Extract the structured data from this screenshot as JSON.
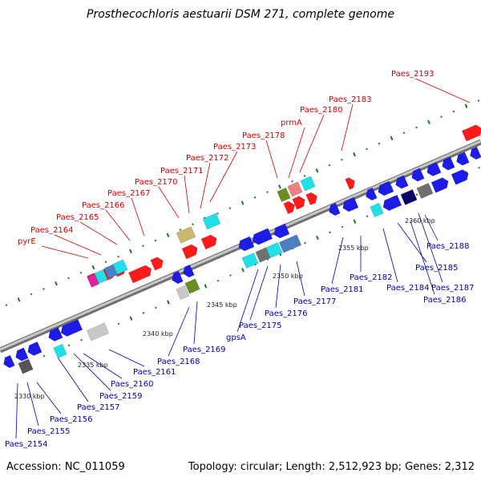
{
  "title": "Prosthecochloris aestuarii DSM 271, complete genome",
  "accession": "Accession: NC_011059",
  "topology": "Topology: circular; Length: 2,512,923 bp; Genes: 2,312",
  "colors": {
    "top_label": "#cc0000",
    "bottom_label": "#0000aa",
    "backbone": "#909090",
    "tick": "#1a7a1a"
  },
  "ticks": [
    {
      "text": "2330 kbp"
    },
    {
      "text": "2335 kbp"
    },
    {
      "text": "2340 kbp"
    },
    {
      "text": "2345 kbp"
    },
    {
      "text": "2350 kbp"
    },
    {
      "text": "2355 kbp"
    },
    {
      "text": "2360 kbp"
    }
  ],
  "top_labels": [
    {
      "text": "pyrE"
    },
    {
      "text": "Paes_2164"
    },
    {
      "text": "Paes_2165"
    },
    {
      "text": "Paes_2166"
    },
    {
      "text": "Paes_2167"
    },
    {
      "text": "Paes_2170"
    },
    {
      "text": "Paes_2171"
    },
    {
      "text": "Paes_2172"
    },
    {
      "text": "Paes_2173"
    },
    {
      "text": "Paes_2178"
    },
    {
      "text": "prmA"
    },
    {
      "text": "Paes_2180"
    },
    {
      "text": "Paes_2183"
    },
    {
      "text": "Paes_2193"
    }
  ],
  "bottom_labels": [
    {
      "text": "Paes_2154"
    },
    {
      "text": "Paes_2155"
    },
    {
      "text": "Paes_2156"
    },
    {
      "text": "Paes_2157"
    },
    {
      "text": "Paes_2159"
    },
    {
      "text": "Paes_2160"
    },
    {
      "text": "Paes_2161"
    },
    {
      "text": "Paes_2168"
    },
    {
      "text": "Paes_2169"
    },
    {
      "text": "gpsA"
    },
    {
      "text": "Paes_2175"
    },
    {
      "text": "Paes_2176"
    },
    {
      "text": "Paes_2177"
    },
    {
      "text": "Paes_2181"
    },
    {
      "text": "Paes_2182"
    },
    {
      "text": "Paes_2184"
    },
    {
      "text": "Paes_2185"
    },
    {
      "text": "Paes_2186"
    },
    {
      "text": "Paes_2187"
    },
    {
      "text": "Paes_2188"
    }
  ]
}
